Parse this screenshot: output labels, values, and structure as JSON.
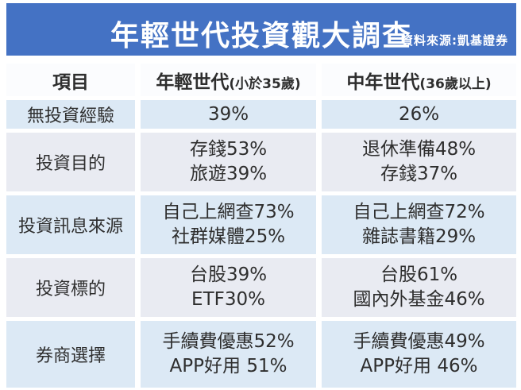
{
  "banner": {
    "title": "年輕世代投資觀大調查",
    "source": "資料來源:凱基證券",
    "bg_color": "#4472c4",
    "text_color": "#ffffff"
  },
  "table": {
    "columns": [
      {
        "label": "項目",
        "sub": ""
      },
      {
        "label": "年輕世代",
        "sub": "(小於35歲)"
      },
      {
        "label": "中年世代",
        "sub": "(36歲以上)"
      }
    ],
    "rows": [
      {
        "item": "無投資經驗",
        "young": [
          "39%"
        ],
        "middle": [
          "26%"
        ]
      },
      {
        "item": "投資目的",
        "young": [
          "存錢53%",
          "旅遊39%"
        ],
        "middle": [
          "退休準備48%",
          "存錢37%"
        ]
      },
      {
        "item": "投資訊息來源",
        "young": [
          "自己上網查73%",
          "社群媒體25%"
        ],
        "middle": [
          "自己上網查72%",
          "雜誌書籍29%"
        ]
      },
      {
        "item": "投資標的",
        "young": [
          "台股39%",
          "ETF30%"
        ],
        "middle": [
          "台股61%",
          "國內外基金46%"
        ]
      },
      {
        "item": "券商選擇",
        "young": [
          "手續費優惠52%",
          "APP好用 51%"
        ],
        "middle": [
          "手續費優惠49%",
          "APP好用 46%"
        ]
      }
    ],
    "colors": {
      "band_blue": "#dce9f5",
      "band_lavender": "#e9ebf2",
      "header_row_bg": "#fbfcfe",
      "text": "#2e2e2e"
    }
  },
  "chart_data": {
    "type": "table",
    "title": "年輕世代投資觀大調查",
    "source": "資料來源:凱基證券",
    "columns": [
      "項目",
      "年輕世代(小於35歲)",
      "中年世代(36歲以上)"
    ],
    "rows": [
      [
        "無投資經驗",
        "39%",
        "26%"
      ],
      [
        "投資目的",
        "存錢53% / 旅遊39%",
        "退休準備48% / 存錢37%"
      ],
      [
        "投資訊息來源",
        "自己上網查73% / 社群媒體25%",
        "自己上網查72% / 雜誌書籍29%"
      ],
      [
        "投資標的",
        "台股39% / ETF30%",
        "台股61% / 國內外基金46%"
      ],
      [
        "券商選擇",
        "手續費優惠52% / APP好用 51%",
        "手續費優惠49% / APP好用 46%"
      ]
    ],
    "values_pct": {
      "無投資經驗": {
        "young": 39,
        "middle": 26
      },
      "投資目的": {
        "young": {
          "存錢": 53,
          "旅遊": 39
        },
        "middle": {
          "退休準備": 48,
          "存錢": 37
        }
      },
      "投資訊息來源": {
        "young": {
          "自己上網查": 73,
          "社群媒體": 25
        },
        "middle": {
          "自己上網查": 72,
          "雜誌書籍": 29
        }
      },
      "投資標的": {
        "young": {
          "台股": 39,
          "ETF": 30
        },
        "middle": {
          "台股": 61,
          "國內外基金": 46
        }
      },
      "券商選擇": {
        "young": {
          "手續費優惠": 52,
          "APP好用": 51
        },
        "middle": {
          "手續費優惠": 49,
          "APP好用": 46
        }
      }
    }
  }
}
